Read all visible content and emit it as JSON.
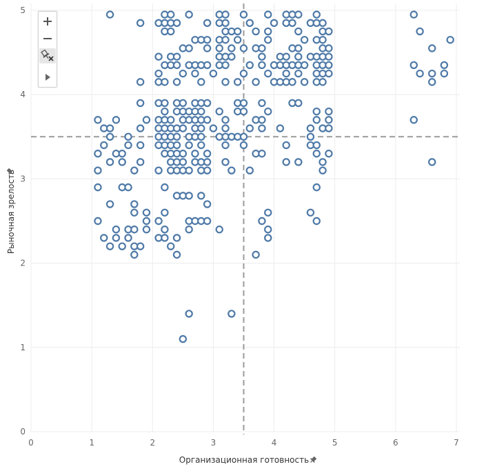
{
  "chart_data": {
    "type": "scatter",
    "xlabel": "Организационная готовность",
    "ylabel": "Рыночная зрелость",
    "xlim": [
      0,
      7
    ],
    "ylim": [
      0,
      5
    ],
    "x_ticks": [
      "0",
      "1",
      "2",
      "3",
      "4",
      "5",
      "6",
      "7"
    ],
    "y_ticks": [
      "0",
      "1",
      "2",
      "3",
      "4",
      "5"
    ],
    "grid": true,
    "reference_lines": {
      "x": 3.5,
      "y": 3.5
    },
    "marker": "open-circle",
    "marker_color": "#4e79a7",
    "points": [
      [
        1.3,
        4.95
      ],
      [
        2.2,
        4.95
      ],
      [
        2.3,
        4.95
      ],
      [
        2.6,
        4.95
      ],
      [
        3.1,
        4.95
      ],
      [
        3.2,
        4.95
      ],
      [
        3.5,
        4.95
      ],
      [
        3.9,
        4.95
      ],
      [
        4.2,
        4.95
      ],
      [
        4.3,
        4.95
      ],
      [
        4.4,
        4.95
      ],
      [
        4.7,
        4.95
      ],
      [
        6.3,
        4.95
      ],
      [
        1.8,
        4.85
      ],
      [
        2.1,
        4.85
      ],
      [
        2.2,
        4.85
      ],
      [
        2.3,
        4.85
      ],
      [
        2.4,
        4.85
      ],
      [
        2.9,
        4.85
      ],
      [
        3.1,
        4.85
      ],
      [
        3.2,
        4.85
      ],
      [
        3.6,
        4.85
      ],
      [
        4.0,
        4.85
      ],
      [
        4.2,
        4.85
      ],
      [
        4.3,
        4.85
      ],
      [
        4.6,
        4.85
      ],
      [
        4.7,
        4.85
      ],
      [
        4.8,
        4.85
      ],
      [
        2.2,
        4.75
      ],
      [
        2.3,
        4.75
      ],
      [
        3.2,
        4.75
      ],
      [
        3.3,
        4.75
      ],
      [
        3.4,
        4.75
      ],
      [
        3.7,
        4.75
      ],
      [
        3.9,
        4.75
      ],
      [
        4.4,
        4.75
      ],
      [
        4.8,
        4.75
      ],
      [
        4.9,
        4.75
      ],
      [
        6.4,
        4.75
      ],
      [
        2.7,
        4.65
      ],
      [
        2.8,
        4.65
      ],
      [
        2.9,
        4.65
      ],
      [
        3.1,
        4.65
      ],
      [
        3.2,
        4.65
      ],
      [
        3.4,
        4.65
      ],
      [
        3.9,
        4.65
      ],
      [
        4.5,
        4.65
      ],
      [
        4.7,
        4.65
      ],
      [
        4.8,
        4.65
      ],
      [
        6.9,
        4.65
      ],
      [
        2.5,
        4.55
      ],
      [
        2.6,
        4.55
      ],
      [
        2.9,
        4.55
      ],
      [
        3.1,
        4.55
      ],
      [
        3.3,
        4.55
      ],
      [
        3.5,
        4.55
      ],
      [
        3.7,
        4.55
      ],
      [
        3.8,
        4.55
      ],
      [
        4.3,
        4.55
      ],
      [
        4.4,
        4.55
      ],
      [
        4.8,
        4.55
      ],
      [
        4.9,
        4.55
      ],
      [
        6.6,
        4.55
      ],
      [
        2.1,
        4.45
      ],
      [
        2.3,
        4.45
      ],
      [
        2.4,
        4.45
      ],
      [
        3.1,
        4.45
      ],
      [
        3.2,
        4.45
      ],
      [
        3.3,
        4.45
      ],
      [
        3.8,
        4.45
      ],
      [
        4.1,
        4.45
      ],
      [
        4.2,
        4.45
      ],
      [
        4.4,
        4.45
      ],
      [
        4.6,
        4.45
      ],
      [
        4.7,
        4.45
      ],
      [
        4.8,
        4.45
      ],
      [
        4.9,
        4.45
      ],
      [
        2.2,
        4.35
      ],
      [
        2.3,
        4.35
      ],
      [
        2.4,
        4.35
      ],
      [
        2.6,
        4.35
      ],
      [
        2.7,
        4.35
      ],
      [
        2.8,
        4.35
      ],
      [
        2.9,
        4.35
      ],
      [
        3.1,
        4.35
      ],
      [
        3.2,
        4.35
      ],
      [
        3.6,
        4.35
      ],
      [
        3.8,
        4.35
      ],
      [
        4.0,
        4.35
      ],
      [
        4.1,
        4.35
      ],
      [
        4.2,
        4.35
      ],
      [
        4.3,
        4.35
      ],
      [
        4.4,
        4.35
      ],
      [
        4.5,
        4.35
      ],
      [
        4.7,
        4.35
      ],
      [
        4.8,
        4.35
      ],
      [
        4.9,
        4.35
      ],
      [
        6.3,
        4.35
      ],
      [
        6.8,
        4.35
      ],
      [
        2.1,
        4.25
      ],
      [
        2.5,
        4.25
      ],
      [
        2.7,
        4.25
      ],
      [
        3.0,
        4.25
      ],
      [
        3.5,
        4.25
      ],
      [
        3.9,
        4.25
      ],
      [
        4.2,
        4.25
      ],
      [
        4.4,
        4.25
      ],
      [
        4.7,
        4.25
      ],
      [
        4.8,
        4.25
      ],
      [
        4.9,
        4.25
      ],
      [
        6.4,
        4.25
      ],
      [
        6.6,
        4.25
      ],
      [
        6.8,
        4.25
      ],
      [
        1.8,
        4.15
      ],
      [
        2.1,
        4.15
      ],
      [
        2.2,
        4.15
      ],
      [
        2.4,
        4.15
      ],
      [
        2.8,
        4.15
      ],
      [
        3.2,
        4.15
      ],
      [
        3.4,
        4.15
      ],
      [
        3.7,
        4.15
      ],
      [
        4.0,
        4.15
      ],
      [
        4.1,
        4.15
      ],
      [
        4.2,
        4.15
      ],
      [
        4.3,
        4.15
      ],
      [
        4.5,
        4.15
      ],
      [
        4.7,
        4.15
      ],
      [
        4.8,
        4.15
      ],
      [
        6.6,
        4.15
      ],
      [
        1.8,
        3.9
      ],
      [
        2.1,
        3.9
      ],
      [
        2.2,
        3.9
      ],
      [
        2.4,
        3.9
      ],
      [
        2.5,
        3.9
      ],
      [
        2.7,
        3.9
      ],
      [
        2.8,
        3.9
      ],
      [
        2.9,
        3.9
      ],
      [
        3.4,
        3.9
      ],
      [
        3.5,
        3.9
      ],
      [
        3.8,
        3.9
      ],
      [
        4.3,
        3.9
      ],
      [
        4.4,
        3.9
      ],
      [
        2.2,
        3.8
      ],
      [
        2.4,
        3.8
      ],
      [
        2.5,
        3.8
      ],
      [
        2.6,
        3.8
      ],
      [
        2.7,
        3.8
      ],
      [
        2.8,
        3.8
      ],
      [
        3.1,
        3.8
      ],
      [
        3.4,
        3.8
      ],
      [
        3.5,
        3.8
      ],
      [
        3.9,
        3.8
      ],
      [
        4.7,
        3.8
      ],
      [
        4.9,
        3.8
      ],
      [
        1.1,
        3.7
      ],
      [
        1.4,
        3.7
      ],
      [
        1.9,
        3.7
      ],
      [
        2.1,
        3.7
      ],
      [
        2.2,
        3.7
      ],
      [
        2.3,
        3.7
      ],
      [
        2.5,
        3.7
      ],
      [
        2.6,
        3.7
      ],
      [
        2.7,
        3.7
      ],
      [
        2.8,
        3.7
      ],
      [
        2.9,
        3.7
      ],
      [
        3.2,
        3.7
      ],
      [
        3.7,
        3.7
      ],
      [
        3.8,
        3.7
      ],
      [
        4.7,
        3.7
      ],
      [
        4.9,
        3.7
      ],
      [
        6.3,
        3.7
      ],
      [
        1.2,
        3.6
      ],
      [
        1.3,
        3.6
      ],
      [
        1.8,
        3.6
      ],
      [
        2.1,
        3.6
      ],
      [
        2.2,
        3.6
      ],
      [
        2.3,
        3.6
      ],
      [
        2.4,
        3.6
      ],
      [
        2.5,
        3.6
      ],
      [
        2.7,
        3.6
      ],
      [
        2.8,
        3.6
      ],
      [
        3.0,
        3.6
      ],
      [
        3.2,
        3.6
      ],
      [
        3.6,
        3.6
      ],
      [
        3.8,
        3.6
      ],
      [
        4.1,
        3.6
      ],
      [
        4.6,
        3.6
      ],
      [
        4.8,
        3.6
      ],
      [
        4.9,
        3.6
      ],
      [
        1.3,
        3.5
      ],
      [
        1.6,
        3.5
      ],
      [
        2.1,
        3.5
      ],
      [
        2.2,
        3.5
      ],
      [
        2.3,
        3.5
      ],
      [
        2.4,
        3.5
      ],
      [
        2.6,
        3.5
      ],
      [
        2.7,
        3.5
      ],
      [
        2.8,
        3.5
      ],
      [
        3.1,
        3.5
      ],
      [
        3.2,
        3.5
      ],
      [
        3.3,
        3.5
      ],
      [
        3.4,
        3.5
      ],
      [
        3.5,
        3.5
      ],
      [
        4.6,
        3.5
      ],
      [
        1.2,
        3.4
      ],
      [
        1.6,
        3.4
      ],
      [
        1.8,
        3.4
      ],
      [
        2.1,
        3.4
      ],
      [
        2.2,
        3.4
      ],
      [
        2.3,
        3.4
      ],
      [
        2.4,
        3.4
      ],
      [
        2.6,
        3.4
      ],
      [
        2.8,
        3.4
      ],
      [
        3.2,
        3.4
      ],
      [
        3.5,
        3.4
      ],
      [
        4.2,
        3.4
      ],
      [
        4.6,
        3.4
      ],
      [
        4.7,
        3.4
      ],
      [
        1.1,
        3.3
      ],
      [
        1.4,
        3.3
      ],
      [
        1.5,
        3.3
      ],
      [
        2.2,
        3.3
      ],
      [
        2.3,
        3.3
      ],
      [
        2.4,
        3.3
      ],
      [
        2.5,
        3.3
      ],
      [
        2.7,
        3.3
      ],
      [
        2.9,
        3.3
      ],
      [
        3.7,
        3.3
      ],
      [
        3.8,
        3.3
      ],
      [
        4.7,
        3.3
      ],
      [
        4.9,
        3.3
      ],
      [
        1.3,
        3.2
      ],
      [
        1.5,
        3.2
      ],
      [
        1.8,
        3.2
      ],
      [
        2.3,
        3.2
      ],
      [
        2.4,
        3.2
      ],
      [
        2.5,
        3.2
      ],
      [
        2.7,
        3.2
      ],
      [
        2.8,
        3.2
      ],
      [
        2.9,
        3.2
      ],
      [
        3.2,
        3.2
      ],
      [
        4.2,
        3.2
      ],
      [
        4.4,
        3.2
      ],
      [
        4.8,
        3.2
      ],
      [
        6.6,
        3.2
      ],
      [
        1.1,
        3.1
      ],
      [
        1.7,
        3.1
      ],
      [
        2.1,
        3.1
      ],
      [
        2.3,
        3.1
      ],
      [
        2.4,
        3.1
      ],
      [
        2.5,
        3.1
      ],
      [
        2.6,
        3.1
      ],
      [
        2.8,
        3.1
      ],
      [
        2.9,
        3.1
      ],
      [
        3.3,
        3.1
      ],
      [
        3.6,
        3.1
      ],
      [
        4.8,
        3.1
      ],
      [
        1.1,
        2.9
      ],
      [
        1.5,
        2.9
      ],
      [
        1.6,
        2.9
      ],
      [
        2.2,
        2.9
      ],
      [
        4.7,
        2.9
      ],
      [
        2.4,
        2.8
      ],
      [
        2.5,
        2.8
      ],
      [
        2.6,
        2.8
      ],
      [
        2.8,
        2.8
      ],
      [
        1.3,
        2.7
      ],
      [
        1.7,
        2.7
      ],
      [
        2.9,
        2.7
      ],
      [
        1.7,
        2.6
      ],
      [
        1.9,
        2.6
      ],
      [
        2.2,
        2.6
      ],
      [
        3.9,
        2.6
      ],
      [
        4.6,
        2.6
      ],
      [
        1.1,
        2.5
      ],
      [
        1.9,
        2.5
      ],
      [
        2.1,
        2.5
      ],
      [
        2.6,
        2.5
      ],
      [
        2.7,
        2.5
      ],
      [
        2.8,
        2.5
      ],
      [
        2.9,
        2.5
      ],
      [
        3.8,
        2.5
      ],
      [
        4.7,
        2.5
      ],
      [
        1.4,
        2.4
      ],
      [
        1.6,
        2.4
      ],
      [
        1.7,
        2.4
      ],
      [
        1.9,
        2.4
      ],
      [
        2.2,
        2.4
      ],
      [
        2.6,
        2.4
      ],
      [
        3.1,
        2.4
      ],
      [
        3.9,
        2.4
      ],
      [
        1.2,
        2.3
      ],
      [
        1.4,
        2.3
      ],
      [
        1.6,
        2.3
      ],
      [
        2.1,
        2.3
      ],
      [
        2.2,
        2.3
      ],
      [
        2.4,
        2.3
      ],
      [
        3.9,
        2.3
      ],
      [
        1.3,
        2.2
      ],
      [
        1.5,
        2.2
      ],
      [
        1.7,
        2.2
      ],
      [
        1.8,
        2.2
      ],
      [
        2.3,
        2.2
      ],
      [
        1.7,
        2.1
      ],
      [
        2.4,
        2.1
      ],
      [
        3.7,
        2.1
      ],
      [
        2.6,
        1.4
      ],
      [
        3.3,
        1.4
      ],
      [
        2.5,
        1.1
      ]
    ]
  },
  "toolbar": {
    "zoom_in_icon": "plus-icon",
    "zoom_out_icon": "minus-icon",
    "clear_selection_icon": "pin-clear-icon",
    "expand_icon": "triangle-right-icon"
  }
}
